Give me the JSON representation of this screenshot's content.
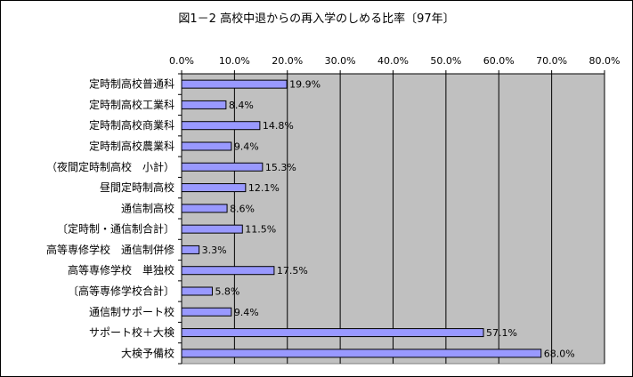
{
  "chart_data": {
    "type": "bar",
    "orientation": "horizontal",
    "title": "図1－2 高校中退からの再入学のしめる比率〔97年〕",
    "categories": [
      "定時制高校普通科",
      "定時制高校工業科",
      "定時制高校商業科",
      "定時制高校農業科",
      "（夜間定時制高校　小計）",
      "昼間定時制高校",
      "通信制高校",
      "〔定時制・通信制合計〕",
      "高等専修学校　通信制併修",
      "高等専修学校　単独校",
      "〔高等専修学校合計〕",
      "通信制サポート校",
      "サポート校＋大検",
      "大検予備校"
    ],
    "values": [
      19.9,
      8.4,
      14.8,
      9.4,
      15.3,
      12.1,
      8.6,
      11.5,
      3.3,
      17.5,
      5.8,
      9.4,
      57.1,
      68.0
    ],
    "data_labels": [
      "19.9%",
      "8.4%",
      "14.8%",
      "9.4%",
      "15.3%",
      "12.1%",
      "8.6%",
      "11.5%",
      "3.3%",
      "17.5%",
      "5.8%",
      "9.4%",
      "57.1%",
      "68.0%"
    ],
    "x_ticks": [
      "0.0%",
      "10.0%",
      "20.0%",
      "30.0%",
      "40.0%",
      "50.0%",
      "60.0%",
      "70.0%",
      "80.0%"
    ],
    "xlim": [
      0,
      80
    ],
    "x_axis_position": "top",
    "grid": true,
    "legend": "none",
    "colors": {
      "bar_fill": "#9999ff",
      "bar_stroke": "#000000",
      "plot_background": "#c0c0c0",
      "grid": "#000000"
    }
  }
}
